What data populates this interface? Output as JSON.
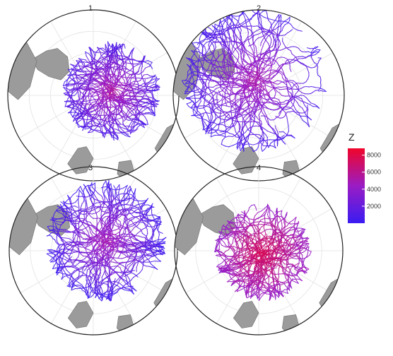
{
  "chart_data": {
    "type": "polar-trajectory-map",
    "projection": "south-polar-stereographic",
    "grid": true,
    "colors": {
      "low": "#3a1cf2",
      "mid": "#9a1cc4",
      "high": "#f0052a",
      "land": "#9b9b9b",
      "grid": "#e2e2e2"
    },
    "panels": [
      {
        "title": "1",
        "cluster": 1,
        "spread": "compact",
        "bias": "east-north"
      },
      {
        "title": "2",
        "cluster": 2,
        "spread": "wide",
        "bias": "north-west"
      },
      {
        "title": "3",
        "cluster": 3,
        "spread": "medium",
        "bias": "north-east"
      },
      {
        "title": "4",
        "cluster": 4,
        "spread": "compact",
        "bias": "center"
      }
    ],
    "legend": {
      "title": "Z",
      "placement": "right",
      "range": [
        0,
        8800
      ],
      "ticks": [
        {
          "value": 2000,
          "label": "2000"
        },
        {
          "value": 4000,
          "label": "4000"
        },
        {
          "value": 6000,
          "label": "6000"
        },
        {
          "value": 8000,
          "label": "8000"
        }
      ]
    }
  }
}
